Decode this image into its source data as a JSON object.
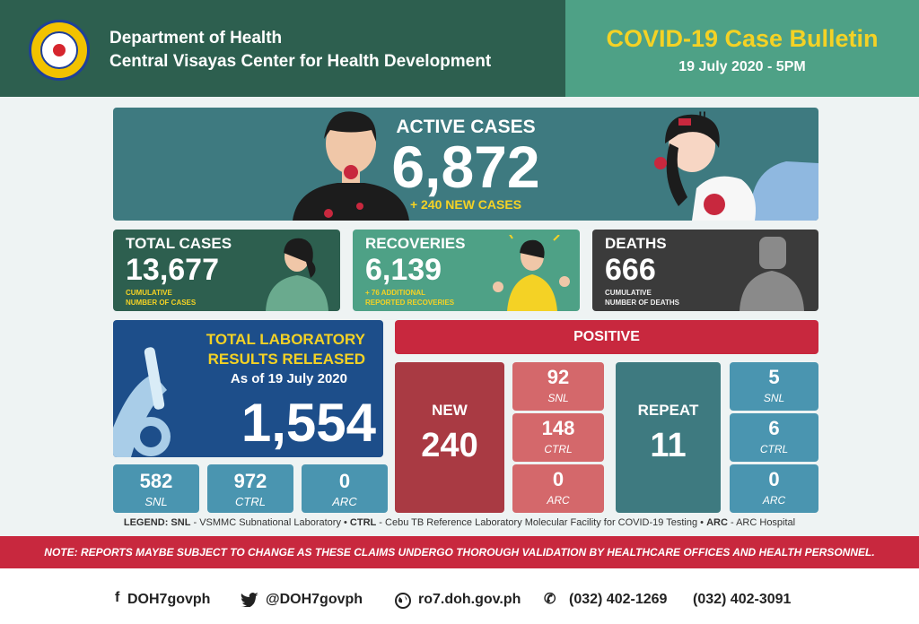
{
  "header": {
    "dept_line1": "Department of Health",
    "dept_line2": "Central Visayas Center for Health Development",
    "bulletin_title": "COVID-19 Case Bulletin",
    "bulletin_date": "19 July 2020 - 5PM"
  },
  "active": {
    "label": "ACTIVE CASES",
    "value": "6,872",
    "new": "+ 240 NEW CASES"
  },
  "total": {
    "label": "TOTAL CASES",
    "value": "13,677",
    "sub1": "CUMULATIVE",
    "sub2": "NUMBER OF CASES"
  },
  "recoveries": {
    "label": "RECOVERIES",
    "value": "6,139",
    "sub1": "+ 76 ADDITIONAL",
    "sub2": "REPORTED RECOVERIES"
  },
  "deaths": {
    "label": "DEATHS",
    "value": "666",
    "sub1": "CUMULATIVE",
    "sub2": "NUMBER OF DEATHS"
  },
  "lab": {
    "title1": "TOTAL LABORATORY",
    "title2": "RESULTS RELEASED",
    "asof": "As of 19 July 2020",
    "value": "1,554",
    "breakdown": [
      {
        "value": "582",
        "key": "SNL"
      },
      {
        "value": "972",
        "key": "CTRL"
      },
      {
        "value": "0",
        "key": "ARC"
      }
    ]
  },
  "positive": {
    "header": "POSITIVE",
    "new_label": "NEW",
    "new_value": "240",
    "new_breakdown": [
      {
        "value": "92",
        "key": "SNL"
      },
      {
        "value": "148",
        "key": "CTRL"
      },
      {
        "value": "0",
        "key": "ARC"
      }
    ],
    "repeat_label": "REPEAT",
    "repeat_value": "11",
    "repeat_breakdown": [
      {
        "value": "5",
        "key": "SNL"
      },
      {
        "value": "6",
        "key": "CTRL"
      },
      {
        "value": "0",
        "key": "ARC"
      }
    ]
  },
  "legend": {
    "prefix": "LEGEND:",
    "snl_key": "SNL",
    "snl_text": " - VSMMC Subnational Laboratory",
    "ctrl_key": "CTRL",
    "ctrl_text": " - Cebu TB Reference Laboratory Molecular Facility for COVID-19 Testing",
    "arc_key": "ARC",
    "arc_text": " - ARC Hospital"
  },
  "note": "NOTE:  REPORTS MAYBE SUBJECT TO CHANGE AS THESE CLAIMS UNDERGO THOROUGH VALIDATION BY HEALTHCARE OFFICES AND HEALTH PERSONNEL.",
  "footer": {
    "facebook": "DOH7govph",
    "twitter": "@DOH7govph",
    "website": "ro7.doh.gov.ph",
    "phone1": "(032) 402-1269",
    "phone2": "(032) 402-3091"
  },
  "colors": {
    "dark_green": "#2d5f4f",
    "green": "#4ea186",
    "teal": "#3e7a80",
    "red": "#c8283e",
    "yellow": "#f4d225",
    "navy": "#1d4e8a"
  }
}
